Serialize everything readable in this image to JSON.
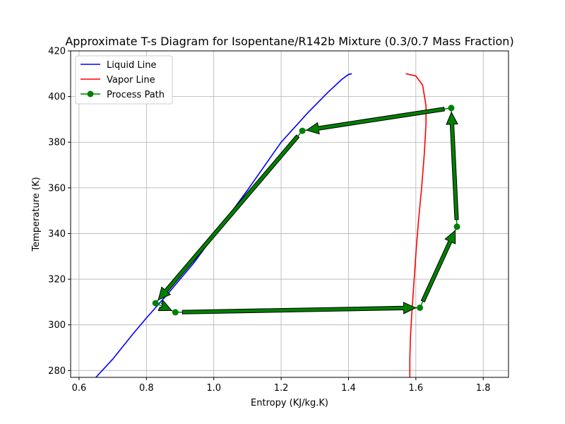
{
  "chart_data": {
    "type": "line",
    "title": "Approximate T-s Diagram for Isopentane/R142b Mixture (0.3/0.7 Mass Fraction)",
    "xlabel": "Entropy (KJ/kg.K)",
    "ylabel": "Temperature (K)",
    "xlim": [
      0.575,
      1.875
    ],
    "ylim": [
      277,
      420
    ],
    "xticks": [
      0.6,
      0.8,
      1.0,
      1.2,
      1.4,
      1.6,
      1.8
    ],
    "yticks": [
      280,
      300,
      320,
      340,
      360,
      380,
      400,
      420
    ],
    "grid": true,
    "legend_position": "top-left",
    "series": [
      {
        "name": "Liquid Line",
        "color": "#0000ff",
        "points": [
          [
            0.65,
            277
          ],
          [
            0.7,
            285
          ],
          [
            0.76,
            296
          ],
          [
            0.8,
            303
          ],
          [
            0.86,
            313
          ],
          [
            0.94,
            327
          ],
          [
            1.0,
            339
          ],
          [
            1.1,
            359
          ],
          [
            1.2,
            380
          ],
          [
            1.28,
            393
          ],
          [
            1.34,
            402
          ],
          [
            1.38,
            407.5
          ],
          [
            1.4,
            409.7
          ],
          [
            1.41,
            410
          ]
        ]
      },
      {
        "name": "Vapor Line",
        "color": "#ff0000",
        "points": [
          [
            1.57,
            410
          ],
          [
            1.6,
            409
          ],
          [
            1.62,
            405
          ],
          [
            1.63,
            396
          ],
          [
            1.63,
            388
          ],
          [
            1.625,
            375
          ],
          [
            1.617,
            360
          ],
          [
            1.608,
            346
          ],
          [
            1.601,
            333
          ],
          [
            1.594,
            318
          ],
          [
            1.588,
            305
          ],
          [
            1.584,
            295
          ],
          [
            1.582,
            285
          ],
          [
            1.582,
            277
          ]
        ]
      },
      {
        "name": "Process Path",
        "color": "#008000",
        "marker": "circle",
        "points": [
          [
            0.827,
            309.5
          ],
          [
            0.886,
            305.5
          ],
          [
            1.612,
            307.5
          ],
          [
            1.722,
            343
          ],
          [
            1.705,
            395
          ],
          [
            1.263,
            385
          ],
          [
            0.827,
            309.5
          ]
        ]
      }
    ]
  }
}
